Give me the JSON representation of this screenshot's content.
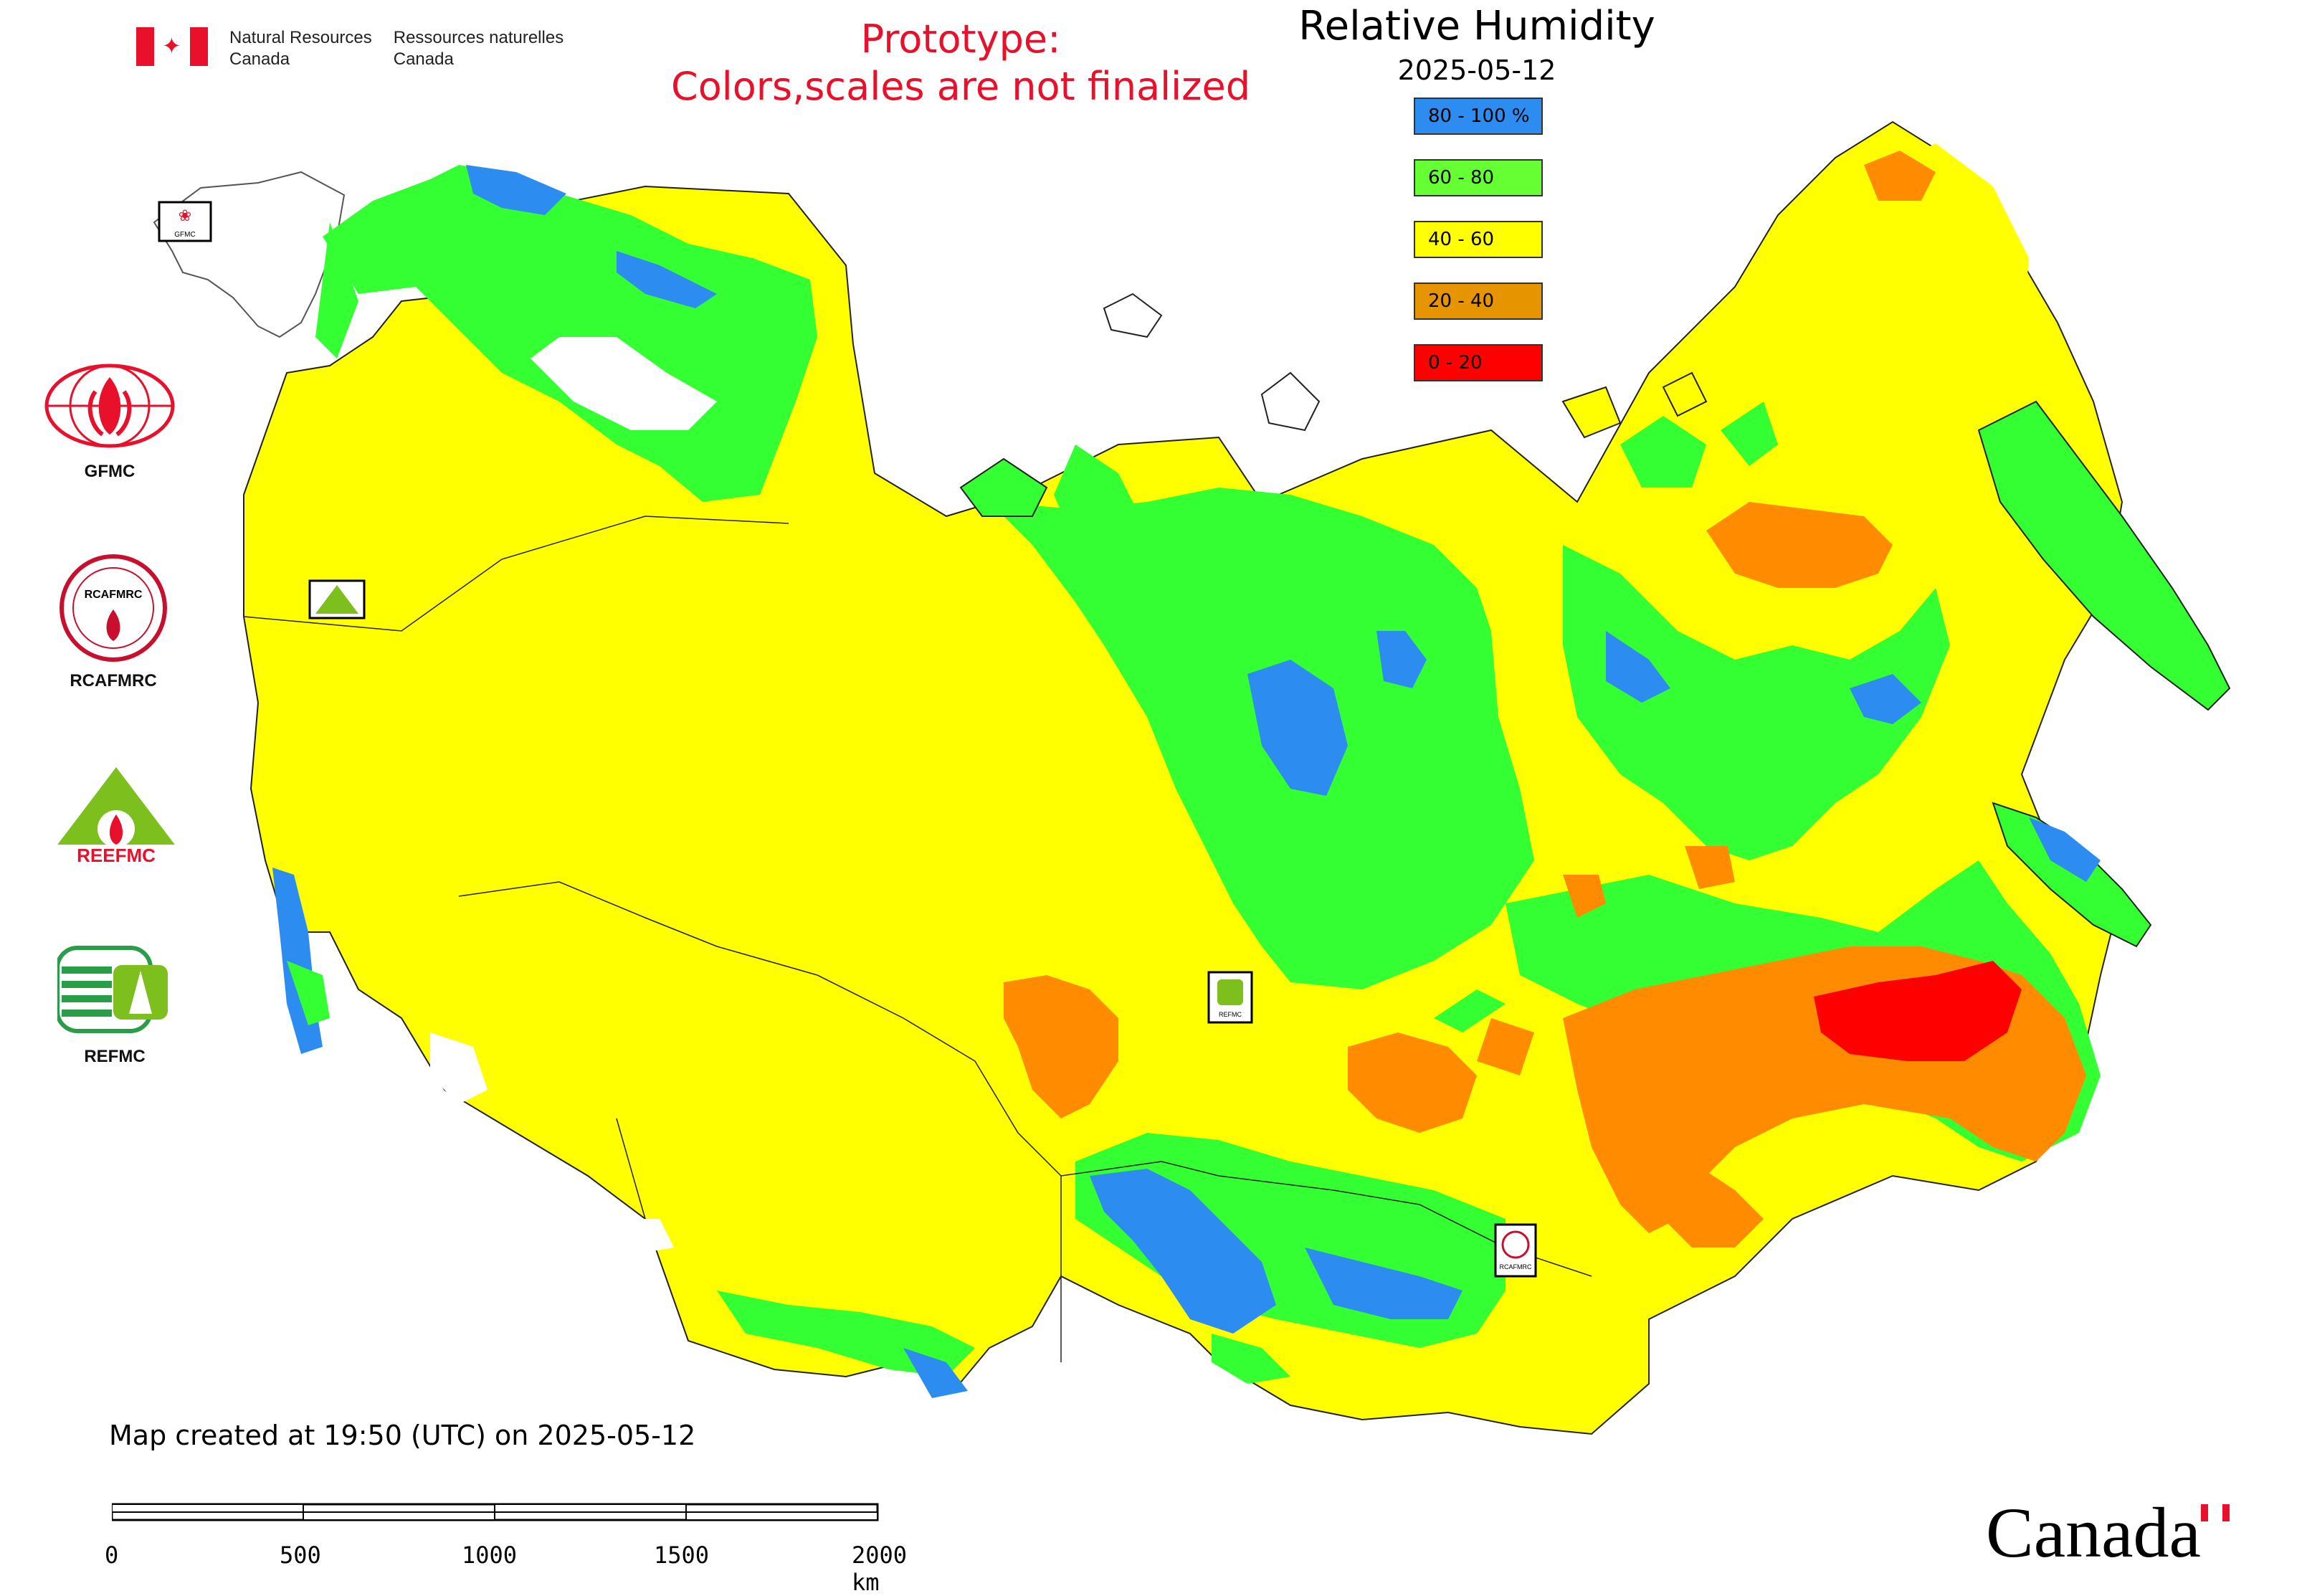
{
  "header": {
    "agency_en_1": "Natural Resources",
    "agency_en_2": "Canada",
    "agency_fr_1": "Ressources naturelles",
    "agency_fr_2": "Canada",
    "prototype_1": "Prototype:",
    "prototype_2": "Colors,scales are not finalized",
    "title": "Relative Humidity",
    "date": "2025-05-12"
  },
  "legend": [
    {
      "label": "80 - 100 %",
      "color": "#2d8cf0"
    },
    {
      "label": "60 - 80",
      "color": "#33ff33"
    },
    {
      "label": "40 - 60",
      "color": "#ffff00"
    },
    {
      "label": "20 - 40",
      "color": "#e69500"
    },
    {
      "label": "0 - 20",
      "color": "#ff0000"
    }
  ],
  "colors": {
    "moist": "#2d8cf0",
    "humid": "#33ff33",
    "mid": "#ffff00",
    "dry": "#ff8c00",
    "very_dry": "#ff0000",
    "prototype_text": "#e8102a"
  },
  "logos": {
    "gfmc": "GFMC",
    "gfmc_small": "GFMC",
    "rcafmrc": "RCAFMRC",
    "rcafmrc_inner": "RCAFMRC",
    "reefmc_word": "REEFMC",
    "refmc": "REFMC",
    "refmc_small": "REFMC",
    "rcafmrc_small": "RCAFMRC"
  },
  "footer": {
    "created": "Map created at 19:50 (UTC) on 2025-05-12",
    "scale_ticks": [
      "0",
      "500",
      "1000",
      "1500",
      "2000 km"
    ],
    "wordmark": "Canada"
  }
}
